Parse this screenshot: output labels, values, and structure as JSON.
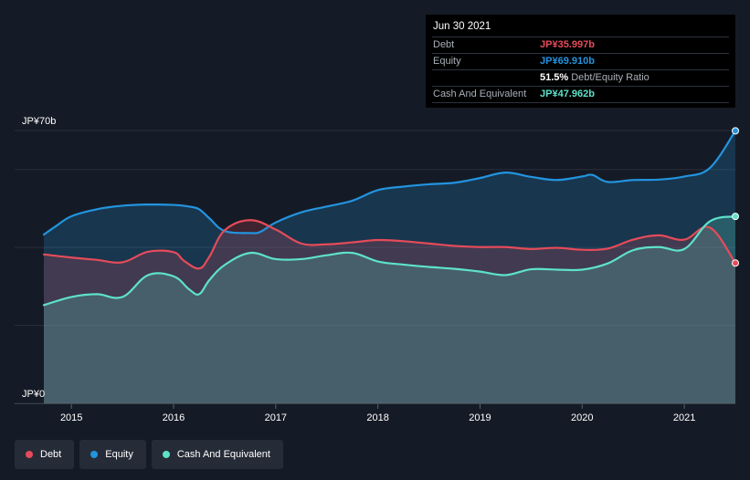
{
  "tooltip": {
    "date": "Jun 30 2021",
    "debt_label": "Debt",
    "debt_value": "JP¥35.997b",
    "equity_label": "Equity",
    "equity_value": "JP¥69.910b",
    "ratio_value": "51.5%",
    "ratio_label": "Debt/Equity Ratio",
    "cash_label": "Cash And Equivalent",
    "cash_value": "JP¥47.962b"
  },
  "legend": {
    "debt": "Debt",
    "equity": "Equity",
    "cash": "Cash And Equivalent"
  },
  "colors": {
    "debt": "#e64b5a",
    "equity": "#2394df",
    "cash": "#5ee2c9",
    "background": "#151b26"
  },
  "chart_data": {
    "type": "area",
    "title": "",
    "xlabel": "",
    "ylabel": "",
    "ylim": [
      0,
      70
    ],
    "y_unit": "JP¥ billions",
    "y_tick_labels": [
      "JP¥70b",
      "JP¥0"
    ],
    "x_tick_labels": [
      "2015",
      "2016",
      "2017",
      "2018",
      "2019",
      "2020",
      "2021"
    ],
    "x_ticks": [
      2015,
      2016,
      2017,
      2018,
      2019,
      2020,
      2021
    ],
    "xlim": [
      2014.73,
      2021.5
    ],
    "series": [
      {
        "name": "Equity",
        "x": [
          2014.73,
          2014.85,
          2015.0,
          2015.25,
          2015.5,
          2015.75,
          2016.0,
          2016.15,
          2016.25,
          2016.35,
          2016.5,
          2016.75,
          2016.85,
          2017.0,
          2017.25,
          2017.5,
          2017.75,
          2018.0,
          2018.25,
          2018.5,
          2018.75,
          2019.0,
          2019.25,
          2019.5,
          2019.75,
          2020.0,
          2020.1,
          2020.25,
          2020.5,
          2020.75,
          2021.0,
          2021.25,
          2021.5
        ],
        "values": [
          43.3,
          45.5,
          48.0,
          49.8,
          50.7,
          51.0,
          50.9,
          50.5,
          49.8,
          47.5,
          44.2,
          43.7,
          44.0,
          46.4,
          49.0,
          50.5,
          52.0,
          54.7,
          55.6,
          56.2,
          56.6,
          57.8,
          59.2,
          58.1,
          57.3,
          58.2,
          58.6,
          56.8,
          57.3,
          57.4,
          58.2,
          60.4,
          69.91
        ]
      },
      {
        "name": "Debt",
        "x": [
          2014.73,
          2015.0,
          2015.25,
          2015.5,
          2015.75,
          2016.0,
          2016.1,
          2016.25,
          2016.35,
          2016.5,
          2016.75,
          2017.0,
          2017.25,
          2017.5,
          2017.75,
          2018.0,
          2018.25,
          2018.5,
          2018.75,
          2019.0,
          2019.25,
          2019.5,
          2019.75,
          2020.0,
          2020.25,
          2020.5,
          2020.75,
          2021.0,
          2021.25,
          2021.5
        ],
        "values": [
          38.2,
          37.4,
          36.8,
          36.2,
          38.9,
          38.8,
          36.6,
          34.6,
          37.6,
          44.4,
          47.0,
          44.6,
          41.0,
          40.8,
          41.3,
          41.9,
          41.6,
          41.0,
          40.4,
          40.1,
          40.1,
          39.6,
          39.9,
          39.4,
          39.7,
          42.0,
          43.1,
          42.0,
          45.1,
          35.997
        ]
      },
      {
        "name": "Cash And Equivalent",
        "x": [
          2014.73,
          2015.0,
          2015.25,
          2015.5,
          2015.75,
          2016.0,
          2016.15,
          2016.25,
          2016.35,
          2016.5,
          2016.75,
          2017.0,
          2017.25,
          2017.5,
          2017.75,
          2018.0,
          2018.25,
          2018.5,
          2018.75,
          2019.0,
          2019.25,
          2019.5,
          2019.75,
          2020.0,
          2020.25,
          2020.5,
          2020.75,
          2021.0,
          2021.25,
          2021.5
        ],
        "values": [
          25.2,
          27.3,
          28.0,
          27.3,
          32.9,
          32.6,
          29.3,
          28.0,
          31.6,
          35.5,
          38.6,
          37.0,
          37.0,
          38.0,
          38.6,
          36.4,
          35.6,
          35.0,
          34.5,
          33.8,
          32.9,
          34.4,
          34.3,
          34.3,
          35.9,
          39.3,
          40.1,
          39.6,
          46.7,
          47.962
        ]
      }
    ]
  }
}
